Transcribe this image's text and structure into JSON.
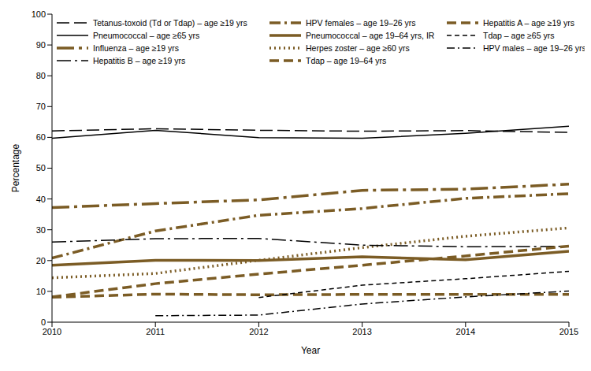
{
  "chart_data": {
    "type": "line",
    "x_label": "Year",
    "y_label": "Percentage",
    "x": [
      2010,
      2011,
      2012,
      2013,
      2014,
      2015
    ],
    "xlim": [
      2010,
      2015
    ],
    "xticks": [
      2010,
      2011,
      2012,
      2013,
      2014,
      2015
    ],
    "ylim": [
      0,
      100
    ],
    "yticks": [
      0,
      10,
      20,
      30,
      40,
      50,
      60,
      70,
      80,
      90,
      100
    ],
    "grid": false,
    "legend": "top",
    "series": [
      {
        "name": "Tetanus-toxoid (Td or Tdap) – age ≥19 yrs",
        "color": "#000000",
        "line_style": "longdash",
        "values": [
          62.1,
          62.8,
          62.3,
          62.0,
          62.2,
          61.6
        ]
      },
      {
        "name": "HPV females – age 19–26 yrs",
        "color": "#7b5c25",
        "line_style": "dashdot",
        "values": [
          20.8,
          29.6,
          34.7,
          36.9,
          40.2,
          41.7
        ]
      },
      {
        "name": "Hepatitis A – age ≥19 yrs",
        "color": "#7b5c25",
        "line_style": "dashed",
        "values": [
          8.1,
          9.1,
          8.9,
          9.0,
          9.0,
          9.0
        ]
      },
      {
        "name": "Pneumococcal – age ≥65 yrs",
        "color": "#000000",
        "line_style": "solid",
        "values": [
          59.7,
          62.3,
          59.9,
          59.7,
          61.3,
          63.6
        ]
      },
      {
        "name": "Pneumococcal – age 19–64 yrs, IR",
        "color": "#7b5c25",
        "line_style": "solid",
        "values": [
          18.5,
          20.1,
          20.0,
          21.2,
          20.3,
          23.0
        ]
      },
      {
        "name": "Tdap – age ≥65 yrs",
        "color": "#000000",
        "line_style": "shortdash",
        "values": [
          null,
          null,
          8.0,
          12.0,
          14.1,
          16.5
        ]
      },
      {
        "name": "Influenza – age ≥19 yrs",
        "color": "#7b5c25",
        "line_style": "longdashdot",
        "values": [
          37.2,
          38.5,
          39.7,
          42.8,
          43.2,
          44.8
        ]
      },
      {
        "name": "Herpes zoster – age ≥60 yrs",
        "color": "#7b5c25",
        "line_style": "dotted",
        "values": [
          14.4,
          15.8,
          20.1,
          24.2,
          27.9,
          30.6
        ]
      },
      {
        "name": "HPV males – age 19–26 yrs",
        "color": "#000000",
        "line_style": "dashdot",
        "values": [
          null,
          2.1,
          2.3,
          5.9,
          8.2,
          10.1
        ]
      },
      {
        "name": "Hepatitis B – age ≥19 yrs",
        "color": "#000000",
        "line_style": "longdashdot",
        "values": [
          26.0,
          27.1,
          27.2,
          25.0,
          24.5,
          24.6
        ]
      },
      {
        "name": "Tdap – age 19–64 yrs",
        "color": "#7b5c25",
        "line_style": "dashed",
        "values": [
          8.2,
          12.5,
          15.6,
          18.5,
          21.5,
          24.7
        ]
      }
    ]
  }
}
